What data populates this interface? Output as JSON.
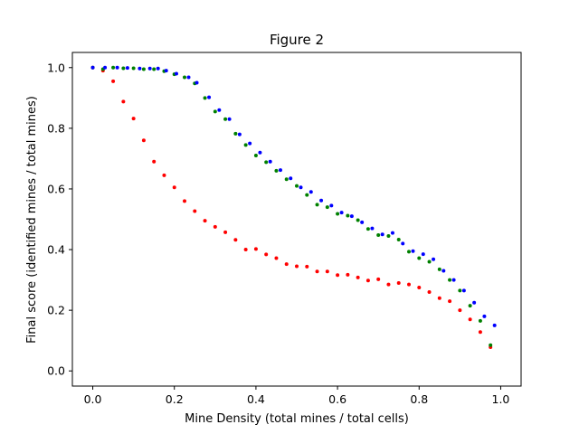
{
  "chart_data": {
    "type": "scatter",
    "title": "Figure 2",
    "xlabel": "Mine Density (total mines / total cells)",
    "ylabel": "Final score (identified mines / total mines)",
    "xlim": [
      -0.05,
      1.05
    ],
    "ylim": [
      -0.05,
      1.05
    ],
    "xticks": [
      "0.0",
      "0.2",
      "0.4",
      "0.6",
      "0.8",
      "1.0"
    ],
    "yticks": [
      "0.0",
      "0.2",
      "0.4",
      "0.6",
      "0.8",
      "1.0"
    ],
    "grid": false,
    "legend": "none",
    "series": [
      {
        "color": "#ff0000",
        "points": [
          [
            0.0,
            1.0
          ],
          [
            0.025,
            0.99
          ],
          [
            0.05,
            0.955
          ],
          [
            0.075,
            0.888
          ],
          [
            0.1,
            0.832
          ],
          [
            0.125,
            0.76
          ],
          [
            0.15,
            0.69
          ],
          [
            0.175,
            0.645
          ],
          [
            0.2,
            0.605
          ],
          [
            0.225,
            0.56
          ],
          [
            0.25,
            0.527
          ],
          [
            0.275,
            0.495
          ],
          [
            0.3,
            0.475
          ],
          [
            0.325,
            0.457
          ],
          [
            0.35,
            0.432
          ],
          [
            0.375,
            0.4
          ],
          [
            0.4,
            0.402
          ],
          [
            0.425,
            0.384
          ],
          [
            0.45,
            0.372
          ],
          [
            0.475,
            0.352
          ],
          [
            0.5,
            0.345
          ],
          [
            0.525,
            0.344
          ],
          [
            0.55,
            0.328
          ],
          [
            0.575,
            0.328
          ],
          [
            0.6,
            0.316
          ],
          [
            0.625,
            0.317
          ],
          [
            0.65,
            0.308
          ],
          [
            0.675,
            0.298
          ],
          [
            0.7,
            0.302
          ],
          [
            0.725,
            0.285
          ],
          [
            0.75,
            0.29
          ],
          [
            0.775,
            0.285
          ],
          [
            0.8,
            0.275
          ],
          [
            0.825,
            0.26
          ],
          [
            0.85,
            0.24
          ],
          [
            0.875,
            0.23
          ],
          [
            0.9,
            0.2
          ],
          [
            0.925,
            0.17
          ],
          [
            0.95,
            0.128
          ],
          [
            0.975,
            0.078
          ]
        ]
      },
      {
        "color": "#008000",
        "points": [
          [
            0.0,
            1.0
          ],
          [
            0.025,
            0.995
          ],
          [
            0.05,
            1.0
          ],
          [
            0.075,
            0.998
          ],
          [
            0.1,
            0.998
          ],
          [
            0.125,
            0.995
          ],
          [
            0.15,
            0.995
          ],
          [
            0.175,
            0.988
          ],
          [
            0.2,
            0.978
          ],
          [
            0.225,
            0.968
          ],
          [
            0.25,
            0.948
          ],
          [
            0.275,
            0.9
          ],
          [
            0.3,
            0.855
          ],
          [
            0.325,
            0.83
          ],
          [
            0.35,
            0.782
          ],
          [
            0.375,
            0.745
          ],
          [
            0.4,
            0.71
          ],
          [
            0.425,
            0.688
          ],
          [
            0.45,
            0.66
          ],
          [
            0.475,
            0.632
          ],
          [
            0.5,
            0.61
          ],
          [
            0.525,
            0.58
          ],
          [
            0.55,
            0.548
          ],
          [
            0.575,
            0.54
          ],
          [
            0.6,
            0.518
          ],
          [
            0.625,
            0.512
          ],
          [
            0.65,
            0.497
          ],
          [
            0.675,
            0.468
          ],
          [
            0.7,
            0.448
          ],
          [
            0.725,
            0.445
          ],
          [
            0.75,
            0.433
          ],
          [
            0.775,
            0.393
          ],
          [
            0.8,
            0.372
          ],
          [
            0.825,
            0.36
          ],
          [
            0.85,
            0.335
          ],
          [
            0.875,
            0.3
          ],
          [
            0.9,
            0.265
          ],
          [
            0.925,
            0.215
          ],
          [
            0.95,
            0.165
          ],
          [
            0.975,
            0.085
          ]
        ]
      },
      {
        "color": "#0000ff",
        "points": [
          [
            0.0,
            1.0
          ],
          [
            0.03,
            1.0
          ],
          [
            0.06,
            1.0
          ],
          [
            0.085,
            0.999
          ],
          [
            0.115,
            0.997
          ],
          [
            0.14,
            0.997
          ],
          [
            0.16,
            0.997
          ],
          [
            0.18,
            0.99
          ],
          [
            0.205,
            0.98
          ],
          [
            0.235,
            0.968
          ],
          [
            0.255,
            0.95
          ],
          [
            0.285,
            0.902
          ],
          [
            0.31,
            0.86
          ],
          [
            0.335,
            0.83
          ],
          [
            0.36,
            0.78
          ],
          [
            0.385,
            0.75
          ],
          [
            0.41,
            0.72
          ],
          [
            0.435,
            0.69
          ],
          [
            0.46,
            0.662
          ],
          [
            0.485,
            0.635
          ],
          [
            0.51,
            0.605
          ],
          [
            0.535,
            0.59
          ],
          [
            0.56,
            0.562
          ],
          [
            0.585,
            0.545
          ],
          [
            0.61,
            0.522
          ],
          [
            0.635,
            0.51
          ],
          [
            0.66,
            0.49
          ],
          [
            0.685,
            0.47
          ],
          [
            0.71,
            0.45
          ],
          [
            0.735,
            0.455
          ],
          [
            0.76,
            0.42
          ],
          [
            0.785,
            0.395
          ],
          [
            0.81,
            0.385
          ],
          [
            0.835,
            0.368
          ],
          [
            0.86,
            0.33
          ],
          [
            0.885,
            0.3
          ],
          [
            0.91,
            0.265
          ],
          [
            0.935,
            0.225
          ],
          [
            0.96,
            0.18
          ],
          [
            0.985,
            0.15
          ]
        ]
      }
    ]
  }
}
